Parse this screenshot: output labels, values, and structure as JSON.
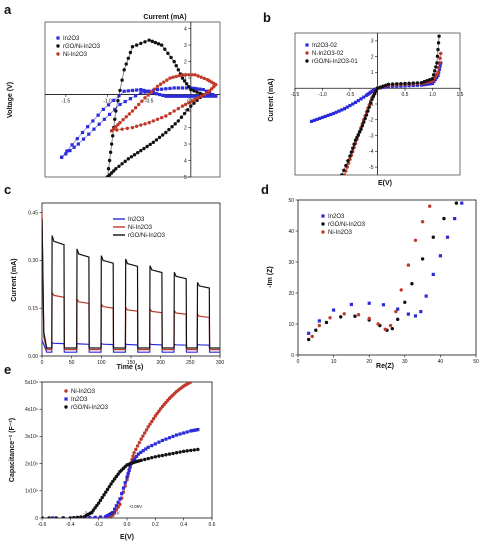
{
  "chart_data": [
    {
      "id": "a",
      "panel_label": "a",
      "type": "line",
      "xlabel": "Current (mA)",
      "ylabel": "Voltage (V)",
      "xlim": [
        -1.75,
        0.35
      ],
      "ylim": [
        -5.0,
        4.4
      ],
      "x_ticks": [
        -1.5,
        -1.0,
        -0.5,
        0.0
      ],
      "x_tick_labels": [
        "-1.5",
        "-1.0",
        "-0.5",
        "0.0"
      ],
      "y_ticks": [
        -5,
        -4,
        -3,
        -2,
        -1,
        1,
        2,
        3,
        4
      ],
      "y_tick_labels": [
        "5",
        "4",
        "3",
        "2",
        "1",
        "1",
        "2",
        "3",
        "4"
      ],
      "legend": [
        "In2O3",
        "rGO/Ni-In2O3",
        "Ni-In2O3"
      ],
      "series": [
        {
          "name": "In2O3",
          "color": "#2b2bd9",
          "marker": "square",
          "x": [
            -1.55,
            -1.3,
            -1.05,
            -0.8,
            -0.6,
            -0.45,
            -0.3,
            -0.2,
            -0.1,
            0.0,
            0.15,
            0.3,
            0.15,
            0.0,
            -0.2,
            -0.4,
            -0.6,
            -0.85,
            -1.1,
            -1.35,
            -1.55
          ],
          "y": [
            -3.8,
            -2.3,
            -0.9,
            0.2,
            0.3,
            0.1,
            -0.1,
            -0.1,
            -0.1,
            -0.1,
            -0.1,
            -0.1,
            0.3,
            0.4,
            0.4,
            0.3,
            0.1,
            -0.6,
            -1.8,
            -3.0,
            -3.8
          ]
        },
        {
          "name": "rGO/Ni-In2O3",
          "color": "#111111",
          "marker": "circle",
          "x": [
            -1.0,
            -0.95,
            -0.9,
            -0.8,
            -0.7,
            -0.5,
            -0.35,
            -0.2,
            -0.1,
            0.0,
            0.15,
            0.0,
            -0.15,
            -0.3,
            -0.45,
            -0.6,
            -0.75,
            -0.9,
            -1.0
          ],
          "y": [
            -5.0,
            -3.0,
            -1.0,
            1.5,
            2.9,
            3.3,
            3.0,
            2.0,
            1.0,
            0.3,
            0.0,
            -0.7,
            -1.6,
            -2.3,
            -2.9,
            -3.4,
            -3.9,
            -4.5,
            -5.0
          ]
        },
        {
          "name": "Ni-In2O3",
          "color": "#c0392b",
          "marker": "circle",
          "x": [
            -0.95,
            -0.85,
            -0.7,
            -0.55,
            -0.4,
            -0.25,
            -0.1,
            0.05,
            0.2,
            0.3,
            0.2,
            0.05,
            -0.1,
            -0.3,
            -0.5,
            -0.7,
            -0.95
          ],
          "y": [
            -2.2,
            -1.7,
            -1.0,
            -0.2,
            0.5,
            1.0,
            1.2,
            1.2,
            0.9,
            0.6,
            0.1,
            -0.3,
            -0.7,
            -1.3,
            -1.7,
            -2.0,
            -2.2
          ]
        }
      ]
    },
    {
      "id": "b",
      "panel_label": "b",
      "type": "line",
      "xlabel": "E(V)",
      "ylabel": "Current (mA)",
      "xlim": [
        -1.5,
        1.5
      ],
      "ylim": [
        -5.5,
        3.5
      ],
      "x_ticks": [
        -1.5,
        -1.0,
        -0.5,
        0.5,
        1.0,
        1.5
      ],
      "x_tick_labels": [
        "-1.5",
        "-1.0",
        "-0.5",
        "0.5",
        "1.0",
        "1.5"
      ],
      "y_ticks": [
        -5,
        -4,
        -3,
        -2,
        -1,
        1,
        2,
        3
      ],
      "y_tick_labels": [
        "-5",
        "-4",
        "-3",
        "-2",
        "-1",
        "1",
        "2",
        "3"
      ],
      "legend": [
        "In2O3-02",
        "N-In2O3-02",
        "rGO/Ni-In2O3-01"
      ],
      "series": [
        {
          "name": "In2O3-02",
          "color": "#2b2bd9",
          "marker": "square",
          "x": [
            -1.2,
            -1.0,
            -0.8,
            -0.6,
            -0.4,
            -0.2,
            -0.1,
            0.0,
            0.2,
            0.5,
            0.8,
            1.0,
            1.1,
            1.15
          ],
          "y": [
            -2.1,
            -1.85,
            -1.6,
            -1.3,
            -0.9,
            -0.45,
            -0.2,
            0.0,
            0.1,
            0.15,
            0.2,
            0.3,
            0.8,
            1.6
          ]
        },
        {
          "name": "N-In2O3-02",
          "color": "#c0392b",
          "marker": "circle",
          "x": [
            -0.6,
            -0.5,
            -0.4,
            -0.3,
            -0.2,
            -0.1,
            0.0,
            0.2,
            0.5,
            0.8,
            1.0,
            1.1,
            1.15
          ],
          "y": [
            -5.5,
            -4.5,
            -3.5,
            -2.5,
            -1.5,
            -0.6,
            0.0,
            0.2,
            0.25,
            0.3,
            0.45,
            1.0,
            2.2
          ]
        },
        {
          "name": "rGO/Ni-In2O3-01",
          "color": "#111111",
          "marker": "circle",
          "x": [
            -0.65,
            -0.5,
            -0.4,
            -0.3,
            -0.2,
            -0.1,
            0.0,
            0.2,
            0.5,
            0.8,
            1.0,
            1.08,
            1.12
          ],
          "y": [
            -5.5,
            -4.3,
            -3.3,
            -2.6,
            -1.7,
            -0.7,
            0.0,
            0.25,
            0.3,
            0.35,
            0.6,
            1.6,
            3.3
          ]
        }
      ]
    },
    {
      "id": "c",
      "panel_label": "c",
      "type": "line",
      "xlabel": "Time (s)",
      "ylabel": "Current (mA)",
      "xlim": [
        0,
        300
      ],
      "ylim": [
        0,
        0.48
      ],
      "x_ticks": [
        0,
        50,
        100,
        150,
        200,
        250,
        300
      ],
      "x_tick_labels": [
        "0",
        "50",
        "100",
        "150",
        "200",
        "250",
        "300"
      ],
      "y_ticks": [
        0.0,
        0.15,
        0.3,
        0.45
      ],
      "y_tick_labels": [
        "0.00",
        "0.15",
        "0.30",
        "0.45"
      ],
      "legend": [
        "In2O3",
        "Ni-In2O3",
        "rGO/Ni-In2O3"
      ],
      "on_start_times": [
        17,
        59,
        100,
        141,
        182,
        223,
        262
      ],
      "on_duration": 20,
      "series": [
        {
          "name": "In2O3",
          "color": "#2b2bd9",
          "baseline": 0.012,
          "on_levels": [
            0.04,
            0.038,
            0.037,
            0.036,
            0.036,
            0.035,
            0.035
          ],
          "start_spike": 0.05
        },
        {
          "name": "Ni-In2O3",
          "color": "#c0392b",
          "baseline": 0.02,
          "on_levels": [
            0.19,
            0.17,
            0.155,
            0.145,
            0.14,
            0.135,
            0.125
          ],
          "start_spike": 0.45
        },
        {
          "name": "rGO/Ni-In2O3",
          "color": "#111111",
          "baseline": 0.025,
          "on_levels": [
            0.36,
            0.32,
            0.3,
            0.29,
            0.27,
            0.25,
            0.22
          ],
          "start_spike": 0.43
        }
      ]
    },
    {
      "id": "d",
      "panel_label": "d",
      "type": "scatter",
      "xlabel": "Re(Z)",
      "ylabel": "-Im (Z)",
      "xlim": [
        0,
        50
      ],
      "ylim": [
        0,
        50
      ],
      "x_ticks": [
        0,
        10,
        20,
        30,
        40,
        50
      ],
      "x_tick_labels": [
        "0",
        "10",
        "20",
        "30",
        "40",
        "50"
      ],
      "y_ticks": [
        0,
        10,
        20,
        30,
        40,
        50
      ],
      "y_tick_labels": [
        "0",
        "10",
        "20",
        "30",
        "40",
        "50"
      ],
      "legend": [
        "In2O3",
        "rGO/Ni-In2O3",
        "Ni-In2O3"
      ],
      "series": [
        {
          "name": "In2O3",
          "color": "#2b2bd9",
          "marker": "square",
          "x": [
            3,
            6,
            10,
            15,
            20,
            24,
            28,
            31,
            33,
            34.5,
            36,
            38,
            40,
            42,
            44,
            46
          ],
          "y": [
            7,
            11,
            14.5,
            16.3,
            16.7,
            16.2,
            14.8,
            13.2,
            12.6,
            14,
            19,
            26,
            32,
            38,
            44,
            49
          ]
        },
        {
          "name": "rGO/Ni-In2O3",
          "color": "#111111",
          "marker": "circle",
          "x": [
            3,
            5,
            8,
            12,
            16,
            20,
            23,
            25,
            26.5,
            28,
            30,
            32,
            35,
            38,
            41,
            44.5
          ],
          "y": [
            5,
            8,
            10.5,
            12.3,
            12.5,
            11.3,
            9.5,
            8.0,
            8.5,
            11.5,
            17,
            23,
            31,
            38,
            44,
            49
          ]
        },
        {
          "name": "Ni-In2O3",
          "color": "#c0392b",
          "marker": "circle",
          "x": [
            4,
            6,
            9,
            13,
            17,
            20,
            22.5,
            24.5,
            26,
            27.5,
            29,
            31,
            33,
            35,
            37
          ],
          "y": [
            6,
            9.5,
            12,
            13.3,
            13.0,
            11.8,
            10.0,
            8.3,
            9.5,
            14,
            21,
            29,
            37,
            43,
            48
          ]
        }
      ]
    },
    {
      "id": "e",
      "panel_label": "e",
      "type": "line",
      "xlabel": "E(V)",
      "ylabel": "Capacitance⁻² (F⁻²)",
      "xlim": [
        -0.6,
        0.6
      ],
      "ylim": [
        0,
        5.0
      ],
      "x_ticks": [
        -0.6,
        -0.4,
        -0.2,
        0.0,
        0.2,
        0.4,
        0.6
      ],
      "x_tick_labels": [
        "-0.6",
        "-0.4",
        "-0.2",
        "0.0",
        "0.2",
        "0.4",
        "0.6"
      ],
      "y_ticks": [
        0,
        1,
        2,
        3,
        4,
        5
      ],
      "y_tick_labels": [
        "0",
        "1x10⁹",
        "2x10⁹",
        "3x10⁹",
        "4x10⁹",
        "5x10⁹"
      ],
      "legend": [
        "Ni-In2O3",
        "In2O3",
        "rGO/Ni-In2O3"
      ],
      "annotations": [
        {
          "text": "-2.6V",
          "x": -0.27,
          "y": 0.05
        },
        {
          "text": "-0.1V",
          "x": -0.09,
          "y": 0.05
        },
        {
          "text": "-0.09V",
          "x": 0.06,
          "y": 0.3
        }
      ],
      "series": [
        {
          "name": "Ni-In2O3",
          "color": "#c0392b",
          "marker": "circle",
          "x": [
            -0.6,
            -0.3,
            -0.15,
            -0.1,
            -0.05,
            0.0,
            0.02,
            0.05,
            0.1,
            0.15,
            0.2,
            0.25,
            0.3,
            0.35,
            0.4,
            0.45
          ],
          "y": [
            0.0,
            0.0,
            0.02,
            0.1,
            0.5,
            1.4,
            1.9,
            2.4,
            2.9,
            3.35,
            3.75,
            4.1,
            4.4,
            4.65,
            4.85,
            5.0
          ]
        },
        {
          "name": "In2O3",
          "color": "#2b2bd9",
          "marker": "square",
          "x": [
            -0.6,
            -0.3,
            -0.15,
            -0.1,
            -0.05,
            0.0,
            0.03,
            0.08,
            0.15,
            0.25,
            0.35,
            0.45,
            0.5
          ],
          "y": [
            0.0,
            0.0,
            0.05,
            0.2,
            0.7,
            1.5,
            2.0,
            2.35,
            2.6,
            2.85,
            3.05,
            3.2,
            3.25
          ]
        },
        {
          "name": "rGO/Ni-In2O3",
          "color": "#111111",
          "marker": "circle",
          "x": [
            -0.6,
            -0.4,
            -0.3,
            -0.25,
            -0.2,
            -0.15,
            -0.1,
            -0.05,
            0.0,
            0.05,
            0.1,
            0.2,
            0.3,
            0.4,
            0.5
          ],
          "y": [
            0.0,
            0.0,
            0.05,
            0.2,
            0.55,
            0.95,
            1.35,
            1.7,
            1.95,
            2.05,
            2.12,
            2.25,
            2.35,
            2.45,
            2.52
          ]
        }
      ]
    }
  ]
}
